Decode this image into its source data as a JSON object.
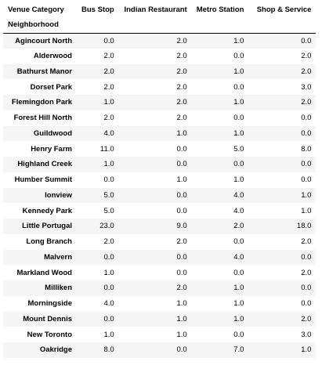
{
  "table": {
    "columns_label": "Venue Category",
    "index_label": "Neighborhood",
    "columns": [
      "Bus Stop",
      "Indian Restaurant",
      "Metro Station",
      "Shop & Service"
    ],
    "rows": [
      {
        "name": "Agincourt North",
        "values": [
          "0.0",
          "2.0",
          "1.0",
          "0.0"
        ]
      },
      {
        "name": "Alderwood",
        "values": [
          "2.0",
          "2.0",
          "0.0",
          "2.0"
        ]
      },
      {
        "name": "Bathurst Manor",
        "values": [
          "2.0",
          "2.0",
          "1.0",
          "2.0"
        ]
      },
      {
        "name": "Dorset Park",
        "values": [
          "2.0",
          "2.0",
          "0.0",
          "3.0"
        ]
      },
      {
        "name": "Flemingdon Park",
        "values": [
          "1.0",
          "2.0",
          "1.0",
          "2.0"
        ]
      },
      {
        "name": "Forest Hill North",
        "values": [
          "2.0",
          "2.0",
          "0.0",
          "0.0"
        ]
      },
      {
        "name": "Guildwood",
        "values": [
          "4.0",
          "1.0",
          "1.0",
          "0.0"
        ]
      },
      {
        "name": "Henry Farm",
        "values": [
          "11.0",
          "0.0",
          "5.0",
          "8.0"
        ]
      },
      {
        "name": "Highland Creek",
        "values": [
          "1.0",
          "0.0",
          "0.0",
          "0.0"
        ]
      },
      {
        "name": "Humber Summit",
        "values": [
          "0.0",
          "1.0",
          "1.0",
          "0.0"
        ]
      },
      {
        "name": "Ionview",
        "values": [
          "5.0",
          "0.0",
          "4.0",
          "1.0"
        ]
      },
      {
        "name": "Kennedy Park",
        "values": [
          "5.0",
          "0.0",
          "4.0",
          "1.0"
        ]
      },
      {
        "name": "Little Portugal",
        "values": [
          "23.0",
          "9.0",
          "2.0",
          "18.0"
        ]
      },
      {
        "name": "Long Branch",
        "values": [
          "2.0",
          "2.0",
          "0.0",
          "2.0"
        ]
      },
      {
        "name": "Malvern",
        "values": [
          "0.0",
          "0.0",
          "4.0",
          "0.0"
        ]
      },
      {
        "name": "Markland Wood",
        "values": [
          "1.0",
          "0.0",
          "0.0",
          "2.0"
        ]
      },
      {
        "name": "Milliken",
        "values": [
          "0.0",
          "2.0",
          "1.0",
          "0.0"
        ]
      },
      {
        "name": "Morningside",
        "values": [
          "4.0",
          "1.0",
          "1.0",
          "0.0"
        ]
      },
      {
        "name": "Mount Dennis",
        "values": [
          "0.0",
          "1.0",
          "1.0",
          "2.0"
        ]
      },
      {
        "name": "New Toronto",
        "values": [
          "1.0",
          "1.0",
          "0.0",
          "3.0"
        ]
      },
      {
        "name": "Oakridge",
        "values": [
          "8.0",
          "0.0",
          "7.0",
          "1.0"
        ]
      }
    ]
  }
}
